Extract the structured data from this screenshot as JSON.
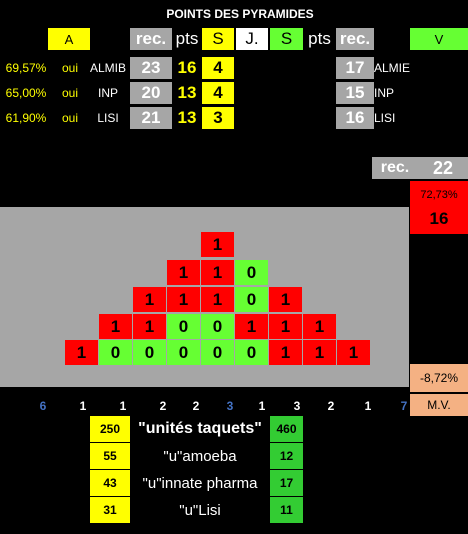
{
  "title": "POINTS DES PYRAMIDES",
  "header": {
    "a": "A",
    "rec_left": "rec.",
    "pts_left": "pts",
    "s_left": "S",
    "j": "J.",
    "s_right": "S",
    "pts_right": "pts",
    "rec_right": "rec.",
    "v": "V"
  },
  "rows": [
    {
      "pct": "69,57%",
      "oui": "oui",
      "name_left": "ALMIB",
      "rec": "23",
      "pts": "16",
      "s": "4",
      "rec_right": "17",
      "name_right": "ALMIE"
    },
    {
      "pct": "65,00%",
      "oui": "oui",
      "name_left": "INP",
      "rec": "20",
      "pts": "13",
      "s": "4",
      "rec_right": "15",
      "name_right": "INP"
    },
    {
      "pct": "61,90%",
      "oui": "oui",
      "name_left": "LISI",
      "rec": "21",
      "pts": "13",
      "s": "3",
      "rec_right": "16",
      "name_right": "LISI"
    }
  ],
  "side": {
    "rec_label": "rec.",
    "rec_value": "22",
    "pct": "72,73%",
    "value": "16",
    "mv_pct": "-8,72%",
    "mv_label": "M.V."
  },
  "pyramid": [
    [
      {
        "v": "1",
        "c": "r"
      }
    ],
    [
      {
        "v": "1",
        "c": "r"
      },
      {
        "v": "1",
        "c": "r"
      },
      {
        "v": "0",
        "c": "g"
      }
    ],
    [
      {
        "v": "1",
        "c": "r"
      },
      {
        "v": "1",
        "c": "r"
      },
      {
        "v": "1",
        "c": "r"
      },
      {
        "v": "0",
        "c": "g"
      },
      {
        "v": "1",
        "c": "r"
      }
    ],
    [
      {
        "v": "1",
        "c": "r"
      },
      {
        "v": "1",
        "c": "r"
      },
      {
        "v": "0",
        "c": "g"
      },
      {
        "v": "0",
        "c": "g"
      },
      {
        "v": "1",
        "c": "r"
      },
      {
        "v": "1",
        "c": "r"
      },
      {
        "v": "1",
        "c": "r"
      }
    ],
    [
      {
        "v": "1",
        "c": "r"
      },
      {
        "v": "0",
        "c": "g"
      },
      {
        "v": "0",
        "c": "g"
      },
      {
        "v": "0",
        "c": "g"
      },
      {
        "v": "0",
        "c": "g"
      },
      {
        "v": "0",
        "c": "g"
      },
      {
        "v": "1",
        "c": "r"
      },
      {
        "v": "1",
        "c": "r"
      },
      {
        "v": "1",
        "c": "r"
      }
    ]
  ],
  "bottom_numbers": [
    {
      "v": "6",
      "color": "#4472c4"
    },
    {
      "v": "1",
      "color": "#ffffff"
    },
    {
      "v": "1",
      "color": "#ffffff"
    },
    {
      "v": "2",
      "color": "#ffffff"
    },
    {
      "v": "2",
      "color": "#ffffff"
    },
    {
      "v": "3",
      "color": "#4472c4"
    },
    {
      "v": "1",
      "color": "#ffffff"
    },
    {
      "v": "3",
      "color": "#ffffff"
    },
    {
      "v": "2",
      "color": "#ffffff"
    },
    {
      "v": "1",
      "color": "#ffffff"
    },
    {
      "v": "7",
      "color": "#4472c4"
    }
  ],
  "units": [
    {
      "left": "250",
      "label": "\"unités taquets\"",
      "right": "460"
    },
    {
      "left": "55",
      "label": "\"u\"amoeba",
      "right": "12"
    },
    {
      "left": "43",
      "label": "\"u\"innate pharma",
      "right": "17"
    },
    {
      "left": "31",
      "label": "\"u\"Lisi",
      "right": "11"
    }
  ],
  "colors": {
    "red": "#ff0000",
    "green": "#66ff33",
    "yellow": "#ffff00",
    "grey": "#a6a6a6"
  }
}
